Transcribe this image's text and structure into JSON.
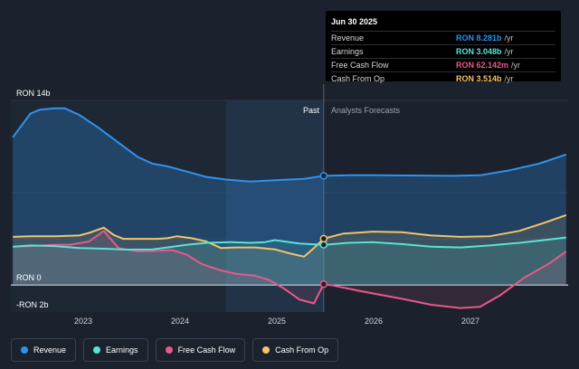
{
  "chart_data": {
    "type": "area",
    "x_range": [
      2022.3,
      2028.0
    ],
    "y_range": [
      -2.05,
      14
    ],
    "y_axis_labels": [
      {
        "value": 14,
        "label": "RON 14b"
      },
      {
        "value": 0,
        "label": "RON 0"
      },
      {
        "value": -2,
        "label": "-RON 2b"
      }
    ],
    "x_ticks": [
      {
        "value": 2023,
        "label": "2023"
      },
      {
        "value": 2024,
        "label": "2024"
      },
      {
        "value": 2025,
        "label": "2025"
      },
      {
        "value": 2026,
        "label": "2026"
      },
      {
        "value": 2027,
        "label": "2027"
      }
    ],
    "past_label": "Past",
    "forecast_label": "Analysts Forecasts",
    "divider_x": 2025.5,
    "shaded_start_x": 2024.5,
    "grid": true,
    "series": [
      {
        "name": "Revenue",
        "color": "#2e93ee",
        "fill": "rgba(46,147,238,0.28)",
        "points": [
          [
            2022.32,
            11.2
          ],
          [
            2022.5,
            13.0
          ],
          [
            2022.6,
            13.3
          ],
          [
            2022.75,
            13.4
          ],
          [
            2022.85,
            13.4
          ],
          [
            2023.0,
            12.9
          ],
          [
            2023.2,
            11.9
          ],
          [
            2023.4,
            10.8
          ],
          [
            2023.6,
            9.7
          ],
          [
            2023.75,
            9.2
          ],
          [
            2023.9,
            9.0
          ],
          [
            2024.1,
            8.6
          ],
          [
            2024.3,
            8.2
          ],
          [
            2024.5,
            8.0
          ],
          [
            2024.75,
            7.85
          ],
          [
            2024.9,
            7.9
          ],
          [
            2025.1,
            7.98
          ],
          [
            2025.3,
            8.05
          ],
          [
            2025.5,
            8.281
          ],
          [
            2025.75,
            8.32
          ],
          [
            2026.0,
            8.32
          ],
          [
            2026.5,
            8.3
          ],
          [
            2026.8,
            8.28
          ],
          [
            2027.1,
            8.32
          ],
          [
            2027.4,
            8.7
          ],
          [
            2027.7,
            9.2
          ],
          [
            2027.98,
            9.9
          ]
        ]
      },
      {
        "name": "Earnings",
        "color": "#59e3d6",
        "fill": "rgba(89,227,214,0.12)",
        "points": [
          [
            2022.32,
            2.9
          ],
          [
            2022.5,
            3.0
          ],
          [
            2022.75,
            2.95
          ],
          [
            2023.0,
            2.8
          ],
          [
            2023.25,
            2.75
          ],
          [
            2023.5,
            2.68
          ],
          [
            2023.75,
            2.7
          ],
          [
            2023.9,
            2.85
          ],
          [
            2024.1,
            3.05
          ],
          [
            2024.3,
            3.2
          ],
          [
            2024.55,
            3.25
          ],
          [
            2024.75,
            3.2
          ],
          [
            2024.9,
            3.25
          ],
          [
            2025.0,
            3.4
          ],
          [
            2025.1,
            3.3
          ],
          [
            2025.25,
            3.15
          ],
          [
            2025.5,
            3.048
          ],
          [
            2025.75,
            3.2
          ],
          [
            2026.0,
            3.25
          ],
          [
            2026.3,
            3.1
          ],
          [
            2026.6,
            2.9
          ],
          [
            2026.9,
            2.85
          ],
          [
            2027.2,
            3.0
          ],
          [
            2027.5,
            3.2
          ],
          [
            2027.75,
            3.4
          ],
          [
            2027.98,
            3.6
          ]
        ]
      },
      {
        "name": "Free Cash Flow",
        "color": "#e8588c",
        "fill": "rgba(232,88,140,0.12)",
        "points": [
          [
            2022.32,
            2.9
          ],
          [
            2022.5,
            2.95
          ],
          [
            2022.75,
            3.05
          ],
          [
            2022.9,
            3.05
          ],
          [
            2023.1,
            3.3
          ],
          [
            2023.25,
            4.1
          ],
          [
            2023.4,
            2.8
          ],
          [
            2023.6,
            2.55
          ],
          [
            2023.8,
            2.6
          ],
          [
            2023.95,
            2.65
          ],
          [
            2024.1,
            2.3
          ],
          [
            2024.25,
            1.6
          ],
          [
            2024.45,
            1.1
          ],
          [
            2024.6,
            0.85
          ],
          [
            2024.8,
            0.7
          ],
          [
            2024.95,
            0.35
          ],
          [
            2025.1,
            -0.3
          ],
          [
            2025.25,
            -1.1
          ],
          [
            2025.4,
            -1.4
          ],
          [
            2025.5,
            0.062
          ],
          [
            2025.6,
            -0.05
          ],
          [
            2025.9,
            -0.5
          ],
          [
            2026.3,
            -1.05
          ],
          [
            2026.6,
            -1.5
          ],
          [
            2026.9,
            -1.75
          ],
          [
            2027.1,
            -1.65
          ],
          [
            2027.3,
            -0.8
          ],
          [
            2027.55,
            0.55
          ],
          [
            2027.8,
            1.6
          ],
          [
            2027.98,
            2.55
          ]
        ]
      },
      {
        "name": "Cash From Op",
        "color": "#f5c366",
        "fill": "rgba(245,195,102,0.12)",
        "points": [
          [
            2022.32,
            3.65
          ],
          [
            2022.5,
            3.7
          ],
          [
            2022.75,
            3.7
          ],
          [
            2023.0,
            3.75
          ],
          [
            2023.1,
            3.95
          ],
          [
            2023.25,
            4.35
          ],
          [
            2023.35,
            3.8
          ],
          [
            2023.45,
            3.5
          ],
          [
            2023.6,
            3.5
          ],
          [
            2023.8,
            3.5
          ],
          [
            2023.9,
            3.55
          ],
          [
            2024.0,
            3.7
          ],
          [
            2024.15,
            3.55
          ],
          [
            2024.3,
            3.3
          ],
          [
            2024.45,
            2.8
          ],
          [
            2024.6,
            2.85
          ],
          [
            2024.8,
            2.85
          ],
          [
            2025.0,
            2.7
          ],
          [
            2025.15,
            2.4
          ],
          [
            2025.3,
            2.15
          ],
          [
            2025.4,
            2.8
          ],
          [
            2025.5,
            3.514
          ],
          [
            2025.7,
            3.9
          ],
          [
            2026.0,
            4.05
          ],
          [
            2026.3,
            4.0
          ],
          [
            2026.6,
            3.75
          ],
          [
            2026.9,
            3.65
          ],
          [
            2027.2,
            3.7
          ],
          [
            2027.5,
            4.1
          ],
          [
            2027.75,
            4.7
          ],
          [
            2027.98,
            5.3
          ]
        ]
      }
    ],
    "markers": [
      {
        "series": "Revenue",
        "x": 2025.5,
        "y": 8.281
      },
      {
        "series": "Earnings",
        "x": 2025.5,
        "y": 3.048
      },
      {
        "series": "Free Cash Flow",
        "x": 2025.5,
        "y": 0.062
      },
      {
        "series": "Cash From Op",
        "x": 2025.5,
        "y": 3.514
      }
    ]
  },
  "tooltip": {
    "date": "Jun 30 2025",
    "rows": [
      {
        "label": "Revenue",
        "value": "RON 8.281b",
        "unit": "/yr",
        "color": "#2e93ee"
      },
      {
        "label": "Earnings",
        "value": "RON 3.048b",
        "unit": "/yr",
        "color": "#59e3d6"
      },
      {
        "label": "Free Cash Flow",
        "value": "RON 62.142m",
        "unit": "/yr",
        "color": "#e8588c"
      },
      {
        "label": "Cash From Op",
        "value": "RON 3.514b",
        "unit": "/yr",
        "color": "#f5c366"
      }
    ]
  },
  "legend": [
    {
      "label": "Revenue",
      "color": "#2e93ee"
    },
    {
      "label": "Earnings",
      "color": "#59e3d6"
    },
    {
      "label": "Free Cash Flow",
      "color": "#e8588c"
    },
    {
      "label": "Cash From Op",
      "color": "#f5c366"
    }
  ]
}
